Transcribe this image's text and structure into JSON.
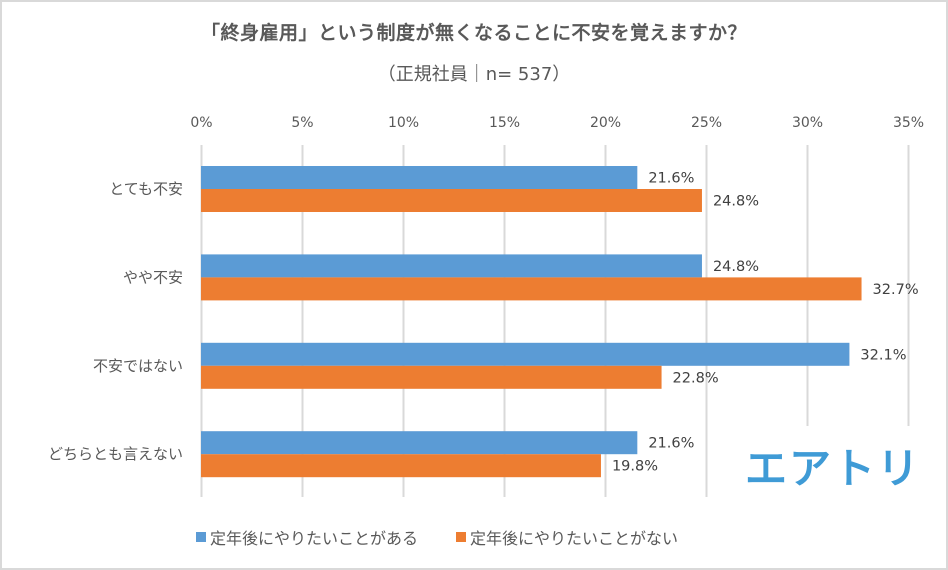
{
  "chart_data": {
    "type": "bar",
    "orientation": "horizontal",
    "title": "「終身雇用」という制度が無くなることに不安を覚えますか？",
    "subtitle": "（正規社員｜n= 537）",
    "categories": [
      "とても不安",
      "やや不安",
      "不安ではない",
      "どちらとも言えない"
    ],
    "series": [
      {
        "name": "定年後にやりたいことがある",
        "color": "#5b9bd5",
        "values": [
          21.6,
          24.8,
          32.1,
          21.6
        ],
        "labels": [
          "21.6%",
          "24.8%",
          "32.1%",
          "21.6%"
        ]
      },
      {
        "name": "定年後にやりたいことがない",
        "color": "#ed7d31",
        "values": [
          24.8,
          32.7,
          22.8,
          19.8
        ],
        "labels": [
          "24.8%",
          "32.7%",
          "22.8%",
          "19.8%"
        ]
      }
    ],
    "xlim": [
      0,
      35
    ],
    "xticks": [
      0,
      5,
      10,
      15,
      20,
      25,
      30,
      35
    ],
    "xtick_labels": [
      "0%",
      "5%",
      "10%",
      "15%",
      "20%",
      "25%",
      "30%",
      "35%"
    ],
    "xlabel": "",
    "ylabel": "",
    "grid": true,
    "legend_position": "bottom"
  },
  "logo": {
    "text": "エアトリ",
    "color": "#3f9bd6"
  }
}
